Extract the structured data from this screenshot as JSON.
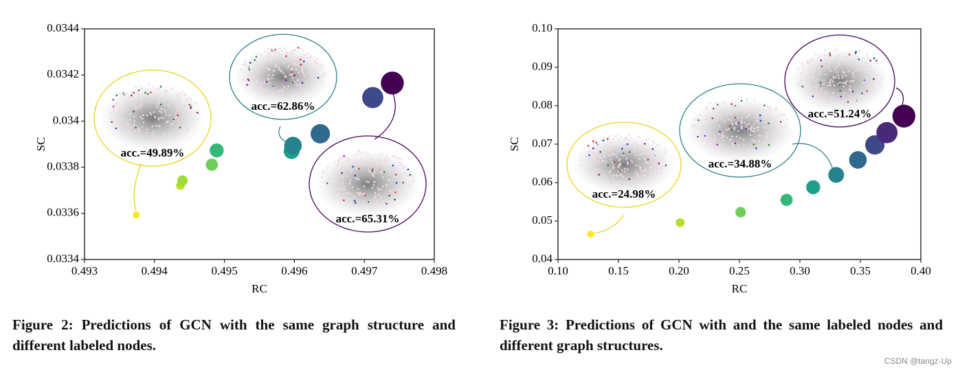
{
  "chart_data": [
    {
      "type": "scatter",
      "x_label": "RC",
      "y_label": "SC",
      "x": [
        0.49374,
        0.49437,
        0.4944,
        0.49482,
        0.49489,
        0.49596,
        0.49598,
        0.49637,
        0.49712,
        0.4974
      ],
      "values": [
        0.033593,
        0.033721,
        0.033742,
        0.033811,
        0.033873,
        0.03387,
        0.033894,
        0.033945,
        0.034102,
        0.034165
      ],
      "colors": [
        "#fde725",
        "#b5de2b",
        "#a0da39",
        "#6ece58",
        "#35b779",
        "#1f9e89",
        "#26828e",
        "#31688e",
        "#3e4989",
        "#440154"
      ],
      "xlim": [
        0.493,
        0.498
      ],
      "xticks": [
        0.493,
        0.494,
        0.495,
        0.496,
        0.497,
        0.498
      ],
      "ylim": [
        0.0334,
        0.0344
      ],
      "yticks": [
        0.0334,
        0.0336,
        0.0338,
        0.034,
        0.0342,
        0.0344
      ],
      "annotations": [
        "acc.=49.89%",
        "acc.=62.86%",
        "acc.=65.31%"
      ]
    },
    {
      "type": "scatter",
      "x_label": "RC",
      "y_label": "SC",
      "x": [
        0.127,
        0.201,
        0.251,
        0.289,
        0.311,
        0.33,
        0.348,
        0.362,
        0.372,
        0.386
      ],
      "values": [
        0.0466,
        0.0496,
        0.0523,
        0.0555,
        0.0588,
        0.062,
        0.0659,
        0.0698,
        0.073,
        0.0773
      ],
      "colors": [
        "#fde725",
        "#b5de2b",
        "#6ece58",
        "#35b779",
        "#1f9e89",
        "#26828e",
        "#31688e",
        "#3e4989",
        "#482878",
        "#440154"
      ],
      "xlim": [
        0.1,
        0.4
      ],
      "xticks": [
        {
          "value": 0.1,
          "label": "0.10"
        },
        0.15,
        {
          "value": 0.2,
          "label": "0.20"
        },
        0.25,
        {
          "value": 0.3,
          "label": "0.30"
        },
        0.35,
        {
          "value": 0.4,
          "label": "0.40"
        }
      ],
      "ylim": [
        0.04,
        0.1
      ],
      "yticks": [
        0.04,
        0.05,
        0.06,
        0.07,
        0.08,
        0.09,
        {
          "value": 0.1,
          "label": "0.10"
        }
      ],
      "annotations": [
        "acc.=24.98%",
        "acc.=34.88%",
        "acc.=51.24%"
      ]
    }
  ],
  "captions": [
    "Figure 2: Predictions of GCN with the same graph structure and different labeled nodes.",
    "Figure 3: Predictions of GCN with and the same labeled nodes and different graph structures."
  ],
  "watermark": "CSDN @tangz-Up"
}
